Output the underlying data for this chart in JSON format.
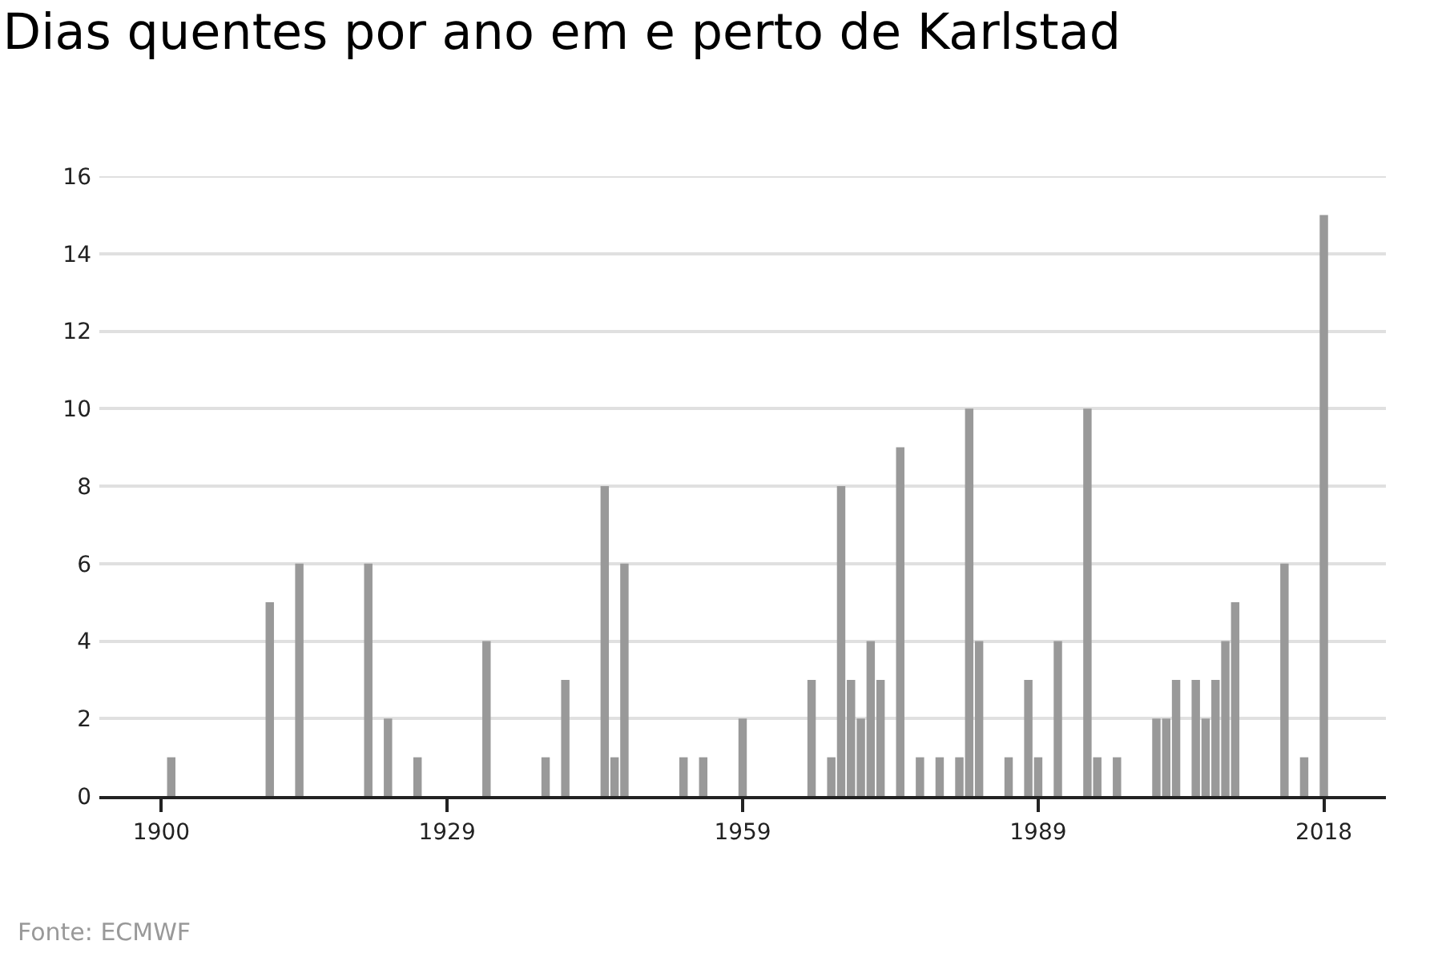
{
  "chart_data": {
    "type": "bar",
    "title": "Dias quentes por ano em e perto de Karlstad",
    "x": [
      1901,
      1911,
      1914,
      1921,
      1923,
      1926,
      1933,
      1939,
      1941,
      1945,
      1946,
      1947,
      1953,
      1955,
      1959,
      1966,
      1968,
      1969,
      1970,
      1971,
      1972,
      1973,
      1975,
      1977,
      1979,
      1981,
      1982,
      1983,
      1986,
      1988,
      1989,
      1991,
      1994,
      1995,
      1997,
      2001,
      2002,
      2003,
      2005,
      2006,
      2007,
      2008,
      2009,
      2014,
      2016,
      2018
    ],
    "values": [
      1,
      5,
      6,
      6,
      2,
      1,
      4,
      1,
      3,
      8,
      1,
      6,
      1,
      1,
      2,
      3,
      1,
      8,
      3,
      2,
      4,
      3,
      9,
      1,
      1,
      1,
      10,
      4,
      1,
      3,
      1,
      4,
      10,
      1,
      1,
      2,
      2,
      3,
      3,
      2,
      3,
      4,
      5,
      6,
      1,
      15
    ],
    "color": "#999999",
    "xlim": [
      1893.7,
      2024.3
    ],
    "xticks": [
      1900,
      1929,
      1959,
      1989,
      2018
    ],
    "ylim": [
      0,
      16
    ],
    "yticks": [
      0,
      2,
      4,
      6,
      8,
      10,
      12,
      14,
      16
    ],
    "grid": "y",
    "annotations": [
      "Fonte: ECMWF"
    ]
  }
}
